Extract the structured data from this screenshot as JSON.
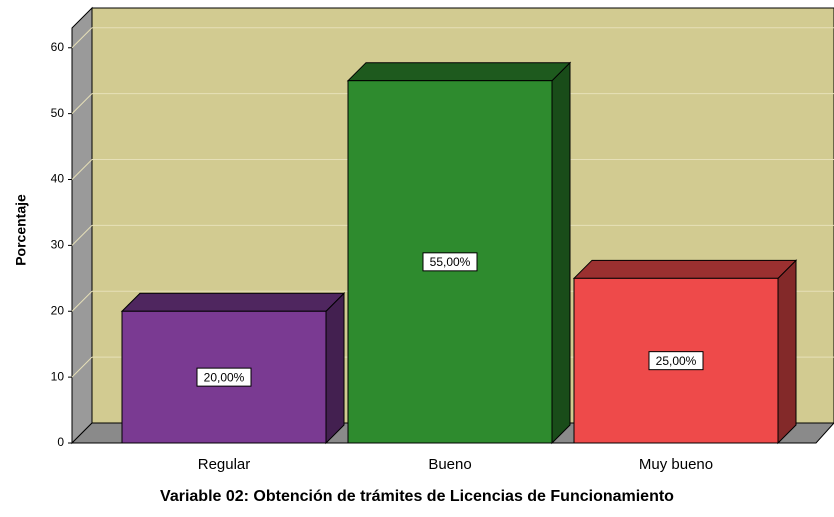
{
  "chart_data": {
    "type": "bar3d",
    "x_label": "Variable 02: Obtención de trámites de Licencias de Funcionamiento",
    "y_label": "Porcentaje",
    "categories": [
      "Regular",
      "Bueno",
      "Muy bueno"
    ],
    "values": [
      20,
      55,
      25
    ],
    "value_labels": [
      "20,00%",
      "55,00%",
      "25,00%"
    ],
    "colors": [
      "#7a3a92",
      "#2e8b2e",
      "#ee4a4a"
    ],
    "ylim": [
      0,
      63
    ],
    "yticks": [
      0,
      10,
      20,
      30,
      40,
      50,
      60
    ],
    "grid": true
  }
}
